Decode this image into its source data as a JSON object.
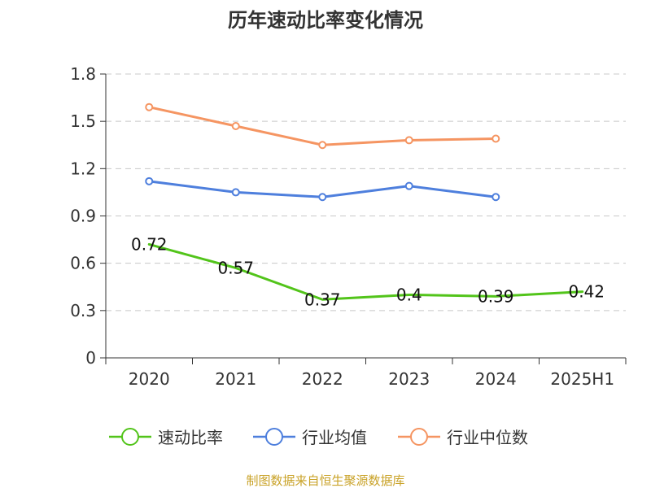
{
  "chart_data": {
    "type": "line",
    "title": "历年速动比率变化情况",
    "categories": [
      "2020",
      "2021",
      "2022",
      "2023",
      "2024",
      "2025H1"
    ],
    "yticks": [
      "0",
      "0.3",
      "0.6",
      "0.9",
      "1.2",
      "1.5",
      "1.8"
    ],
    "ylim": [
      0,
      1.8
    ],
    "grid": true,
    "legend_position": "bottom",
    "series": [
      {
        "name": "速动比率",
        "color": "#52c41a",
        "values": [
          0.72,
          0.57,
          0.37,
          0.4,
          0.39,
          0.42
        ],
        "labels": [
          "0.72",
          "0.57",
          "0.37",
          "0.4",
          "0.39",
          "0.42"
        ],
        "markers": false
      },
      {
        "name": "行业均值",
        "color": "#4e7fdd",
        "values": [
          1.12,
          1.05,
          1.02,
          1.09,
          1.02,
          null
        ],
        "markers": true
      },
      {
        "name": "行业中位数",
        "color": "#f59562",
        "values": [
          1.59,
          1.47,
          1.35,
          1.38,
          1.39,
          null
        ],
        "markers": true
      }
    ]
  },
  "source": {
    "text": "制图数据来自恒生聚源数据库",
    "color": "#c9a227"
  }
}
